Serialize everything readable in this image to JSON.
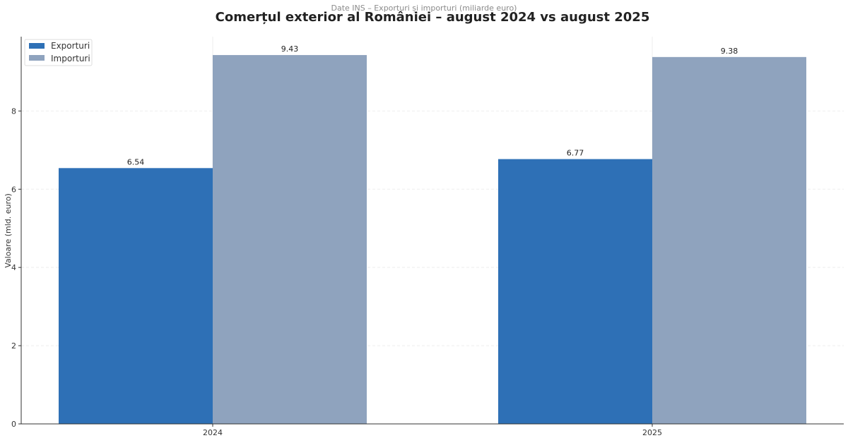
{
  "chart_data": {
    "type": "bar",
    "title": "Comerțul exterior al României – august 2024 vs august 2025",
    "subtitle": "Date INS – Exporturi și importuri (miliarde euro)",
    "xlabel": "",
    "ylabel": "Valoare (mld. euro)",
    "categories": [
      "2024",
      "2025"
    ],
    "series": [
      {
        "name": "Exporturi",
        "values": [
          6.54,
          6.77
        ],
        "color": "#2e70b6"
      },
      {
        "name": "Importuri",
        "values": [
          9.43,
          9.38
        ],
        "color": "#8fa3be"
      }
    ],
    "data_labels": [
      [
        "6.54",
        "6.77"
      ],
      [
        "9.43",
        "9.38"
      ]
    ],
    "y_ticks": [
      0,
      2,
      4,
      6,
      8
    ],
    "y_tick_labels": [
      "0",
      "2",
      "4",
      "6",
      "8"
    ],
    "ylim": [
      0,
      9.9
    ],
    "grid": "horizontal",
    "legend_position": "top-left"
  }
}
